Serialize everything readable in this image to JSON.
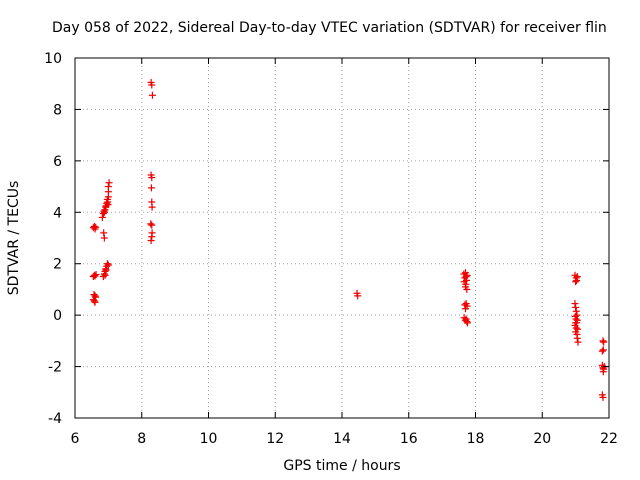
{
  "chart_data": {
    "type": "scatter",
    "title": "Day 058 of 2022, Sidereal Day-to-day VTEC variation (SDTVAR) for receiver flin",
    "xlabel": "GPS time / hours",
    "ylabel": "SDTVAR / TECUs",
    "xlim": [
      6,
      22
    ],
    "ylim": [
      -4,
      10
    ],
    "xticks": [
      6,
      8,
      10,
      12,
      14,
      16,
      18,
      20,
      22
    ],
    "yticks": [
      -4,
      -2,
      0,
      2,
      4,
      6,
      8,
      10
    ],
    "grid": true,
    "marker": "+",
    "color": "#ee0000",
    "series": [
      {
        "name": "SDTVAR",
        "points": [
          [
            6.55,
            3.4
          ],
          [
            6.58,
            3.45
          ],
          [
            6.6,
            3.35
          ],
          [
            6.62,
            3.42
          ],
          [
            6.55,
            1.5
          ],
          [
            6.58,
            1.55
          ],
          [
            6.6,
            1.52
          ],
          [
            6.63,
            1.58
          ],
          [
            6.57,
            0.8
          ],
          [
            6.6,
            0.75
          ],
          [
            6.55,
            0.6
          ],
          [
            6.58,
            0.55
          ],
          [
            6.62,
            0.7
          ],
          [
            6.6,
            0.5
          ],
          [
            6.85,
            1.5
          ],
          [
            6.88,
            1.6
          ],
          [
            6.9,
            1.7
          ],
          [
            6.92,
            1.8
          ],
          [
            6.95,
            1.9
          ],
          [
            6.97,
            2.0
          ],
          [
            7.0,
            1.95
          ],
          [
            6.93,
            1.75
          ],
          [
            6.9,
            1.55
          ],
          [
            6.82,
            3.8
          ],
          [
            6.85,
            3.95
          ],
          [
            6.87,
            4.05
          ],
          [
            6.9,
            4.1
          ],
          [
            6.92,
            4.2
          ],
          [
            6.95,
            4.35
          ],
          [
            6.97,
            4.5
          ],
          [
            7.0,
            4.6
          ],
          [
            6.88,
            4.0
          ],
          [
            6.93,
            4.25
          ],
          [
            6.98,
            4.4
          ],
          [
            7.0,
            4.8
          ],
          [
            7.0,
            5.0
          ],
          [
            7.02,
            5.15
          ],
          [
            6.99,
            4.3
          ],
          [
            6.86,
            3.2
          ],
          [
            6.88,
            3.0
          ],
          [
            8.28,
            9.05
          ],
          [
            8.3,
            8.95
          ],
          [
            8.32,
            8.55
          ],
          [
            8.28,
            5.45
          ],
          [
            8.3,
            5.35
          ],
          [
            8.29,
            4.95
          ],
          [
            8.3,
            4.4
          ],
          [
            8.31,
            4.2
          ],
          [
            8.27,
            3.55
          ],
          [
            8.3,
            3.5
          ],
          [
            8.31,
            3.2
          ],
          [
            8.3,
            3.05
          ],
          [
            8.28,
            2.9
          ],
          [
            14.45,
            0.85
          ],
          [
            14.47,
            0.75
          ],
          [
            17.65,
            1.6
          ],
          [
            17.7,
            1.65
          ],
          [
            17.75,
            1.55
          ],
          [
            17.68,
            1.45
          ],
          [
            17.72,
            1.5
          ],
          [
            17.66,
            1.3
          ],
          [
            17.7,
            1.1
          ],
          [
            17.74,
            1.0
          ],
          [
            17.71,
            1.2
          ],
          [
            17.73,
            1.35
          ],
          [
            17.68,
            0.4
          ],
          [
            17.72,
            0.45
          ],
          [
            17.75,
            0.35
          ],
          [
            17.7,
            0.25
          ],
          [
            17.66,
            -0.1
          ],
          [
            17.7,
            -0.2
          ],
          [
            17.74,
            -0.25
          ],
          [
            17.72,
            -0.15
          ],
          [
            17.76,
            -0.3
          ],
          [
            20.98,
            1.55
          ],
          [
            21.02,
            1.45
          ],
          [
            21.05,
            1.5
          ],
          [
            21.0,
            1.3
          ],
          [
            21.03,
            1.35
          ],
          [
            20.98,
            0.45
          ],
          [
            21.0,
            0.3
          ],
          [
            21.02,
            0.15
          ],
          [
            21.04,
            0.0
          ],
          [
            20.99,
            -0.05
          ],
          [
            21.01,
            -0.15
          ],
          [
            21.05,
            -0.2
          ],
          [
            21.03,
            -0.3
          ],
          [
            20.98,
            -0.4
          ],
          [
            21.02,
            -0.5
          ],
          [
            21.06,
            -0.55
          ],
          [
            21.0,
            -0.65
          ],
          [
            21.04,
            -0.75
          ],
          [
            21.05,
            -0.9
          ],
          [
            21.07,
            -1.05
          ],
          [
            21.0,
            -0.3
          ],
          [
            21.82,
            -1.0
          ],
          [
            21.84,
            -1.05
          ],
          [
            21.8,
            -1.4
          ],
          [
            21.83,
            -1.35
          ],
          [
            21.8,
            -1.95
          ],
          [
            21.82,
            -2.05
          ],
          [
            21.84,
            -2.1
          ],
          [
            21.86,
            -2.0
          ],
          [
            21.83,
            -2.2
          ],
          [
            21.8,
            -3.1
          ],
          [
            21.82,
            -3.2
          ]
        ]
      }
    ]
  }
}
